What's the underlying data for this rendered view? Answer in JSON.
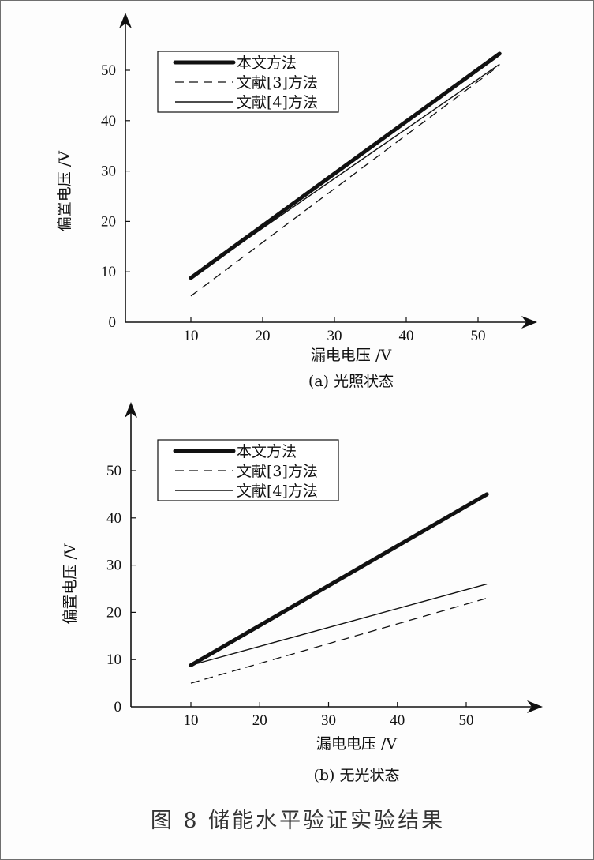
{
  "figure_title": "图 8   储能水平验证实验结果",
  "chart_data": [
    {
      "type": "line",
      "caption": "(a)  光照状态",
      "xlabel": "漏电电压  /V",
      "ylabel": "偏置电压  /V",
      "xticks": [
        10,
        20,
        30,
        40,
        50
      ],
      "yticks": [
        0,
        10,
        20,
        30,
        40,
        50
      ],
      "legend_position": "top-left",
      "grid": false,
      "series": [
        {
          "name": "本文方法",
          "style": "thick",
          "x": [
            10,
            53
          ],
          "y": [
            8.8,
            53.3
          ]
        },
        {
          "name": "文献[3]方法",
          "style": "dashed",
          "x": [
            10,
            53
          ],
          "y": [
            5.2,
            51.0
          ]
        },
        {
          "name": "文献[4]方法",
          "style": "thin",
          "x": [
            10,
            53
          ],
          "y": [
            8.8,
            51.2
          ]
        }
      ]
    },
    {
      "type": "line",
      "caption": "(b)  无光状态",
      "xlabel": "漏电电压  /V",
      "ylabel": "偏置电压  /V",
      "xticks": [
        10,
        20,
        30,
        40,
        50
      ],
      "yticks": [
        0,
        10,
        20,
        30,
        40,
        50
      ],
      "legend_position": "top-left",
      "grid": false,
      "series": [
        {
          "name": "本文方法",
          "style": "thick",
          "x": [
            10,
            53
          ],
          "y": [
            8.8,
            45.0
          ]
        },
        {
          "name": "文献[3]方法",
          "style": "dashed",
          "x": [
            10,
            53
          ],
          "y": [
            5.0,
            23.0
          ]
        },
        {
          "name": "文献[4]方法",
          "style": "thin",
          "x": [
            10,
            53
          ],
          "y": [
            8.8,
            26.0
          ]
        }
      ]
    }
  ]
}
